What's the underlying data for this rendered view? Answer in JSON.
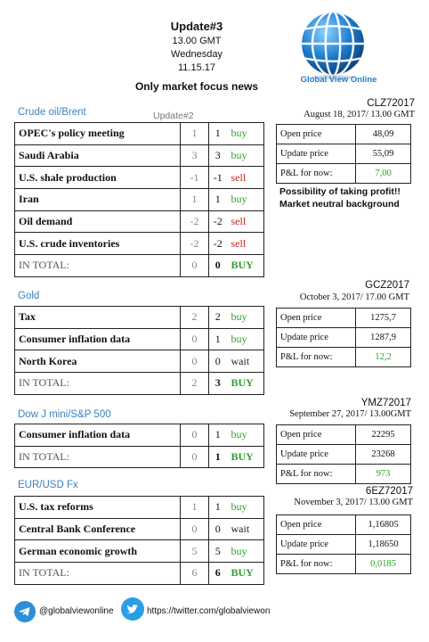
{
  "header": {
    "title": "Update#3",
    "time": "13.00 GMT",
    "weekday": "Wednesday",
    "date": "11.15.17",
    "focus": "Only market focus news"
  },
  "brand": {
    "name": "Global View Online"
  },
  "crude": {
    "title": "Crude oil/Brent",
    "prev_header": "Update#2",
    "rows": [
      {
        "name": "OPEC's policy meeting",
        "prev": "1",
        "cur": "1",
        "signal": "buy"
      },
      {
        "name": "Saudi Arabia",
        "prev": "3",
        "cur": "3",
        "signal": "buy"
      },
      {
        "name": "U.S. shale production",
        "prev": "-1",
        "cur": "-1",
        "signal": "sell"
      },
      {
        "name": "Iran",
        "prev": "1",
        "cur": "1",
        "signal": "buy"
      },
      {
        "name": "Oil demand",
        "prev": "-2",
        "cur": "-2",
        "signal": "sell"
      },
      {
        "name": "U.S. crude inventories",
        "prev": "-2",
        "cur": "-2",
        "signal": "sell"
      }
    ],
    "total": {
      "name": "IN TOTAL:",
      "prev": "0",
      "cur": "0",
      "signal": "BUY"
    },
    "contract": "CLZ72017",
    "contract_date": "August 18, 2017/ 13.00 GMT",
    "open_label": "Open price",
    "open": "48,09",
    "update_label": "Update price",
    "update": "55,09",
    "pl_label": "P&L for now:",
    "pl": "7,00",
    "note1": "Possibility of taking profit!!",
    "note2": "Market neutral background"
  },
  "gold": {
    "title": "Gold",
    "rows": [
      {
        "name": "Tax",
        "prev": "2",
        "cur": "2",
        "signal": "buy"
      },
      {
        "name": "Consumer inflation data",
        "prev": "0",
        "cur": "1",
        "signal": "buy"
      },
      {
        "name": "North Korea",
        "prev": "0",
        "cur": "0",
        "signal": "wait"
      }
    ],
    "total": {
      "name": "IN TOTAL:",
      "prev": "2",
      "cur": "3",
      "signal": "BUY"
    },
    "contract": "GCZ2017",
    "contract_date": "October 3, 2017/ 17.00 GMT",
    "open_label": "Open price",
    "open": "1275,7",
    "update_label": "Update price",
    "update": "1287,9",
    "pl_label": "P&L for now:",
    "pl": "12,2"
  },
  "dow": {
    "title": "Dow J mini/S&P 500",
    "rows": [
      {
        "name": "Consumer inflation data",
        "prev": "0",
        "cur": "1",
        "signal": "buy"
      }
    ],
    "total": {
      "name": "IN TOTAL:",
      "prev": "0",
      "cur": "1",
      "signal": "BUY"
    },
    "contract": "YMZ72017",
    "contract_date": "September 27, 2017/ 13.00GMT",
    "open_label": "Open price",
    "open": "22295",
    "update_label": "Update price",
    "update": "23268",
    "pl_label": "P&L for now:",
    "pl": "973"
  },
  "eur": {
    "title": "EUR/USD Fx",
    "rows": [
      {
        "name": "U.S. tax reforms",
        "prev": "1",
        "cur": "1",
        "signal": "buy"
      },
      {
        "name": "Central Bank Conference",
        "prev": "0",
        "cur": "0",
        "signal": "wait"
      },
      {
        "name": "German economic growth",
        "prev": "5",
        "cur": "5",
        "signal": "buy"
      }
    ],
    "total": {
      "name": "IN TOTAL:",
      "prev": "6",
      "cur": "6",
      "signal": "BUY"
    },
    "contract": "6EZ72017",
    "contract_date": "November 3, 2017/ 13.00 GMT",
    "open_label": "Open price",
    "open": "1,16805",
    "update_label": "Update price",
    "update": "1,18650",
    "pl_label": "P&L for now:",
    "pl": "0,0185"
  },
  "footer": {
    "telegram": "@globalviewonline",
    "twitter": "https://twitter.com/globalviewon"
  },
  "colors": {
    "buy": "#2aa12a",
    "sell": "#cc2222",
    "accent": "#3a83c2"
  }
}
